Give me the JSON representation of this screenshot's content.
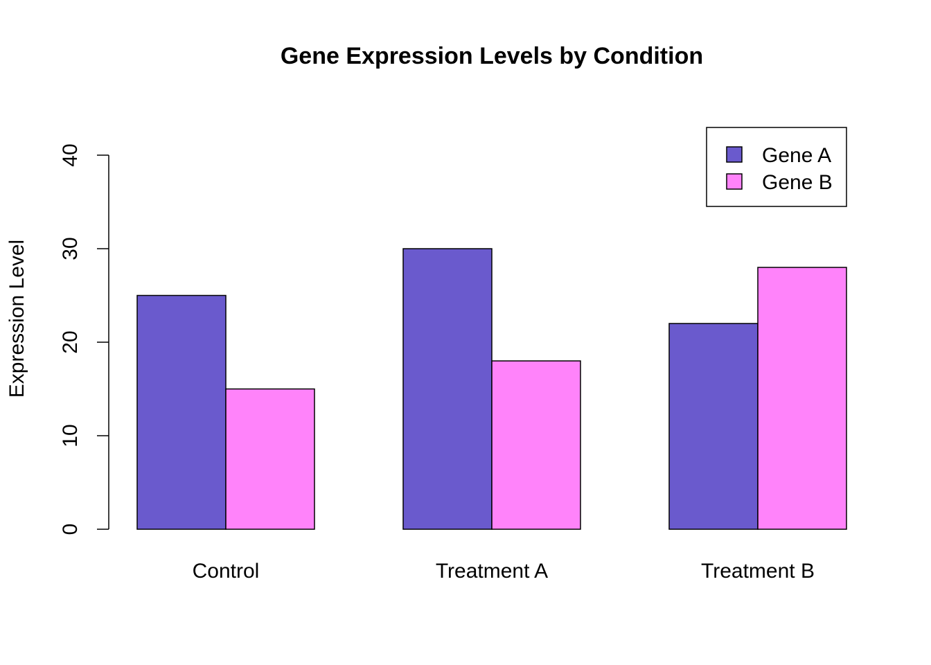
{
  "chart_data": {
    "type": "bar",
    "title": "Gene Expression Levels by Condition",
    "xlabel": "",
    "ylabel": "Expression Level",
    "categories": [
      "Control",
      "Treatment A",
      "Treatment B"
    ],
    "series": [
      {
        "name": "Gene A",
        "values": [
          25,
          30,
          22
        ],
        "color": "#6A5ACD"
      },
      {
        "name": "Gene B",
        "values": [
          15,
          18,
          28
        ],
        "color": "#FF83FA"
      }
    ],
    "ylim": [
      0,
      40
    ],
    "yticks": [
      "0",
      "10",
      "20",
      "30",
      "40"
    ],
    "grid": false,
    "legend_position": "top-right",
    "bar_mode": "grouped"
  }
}
